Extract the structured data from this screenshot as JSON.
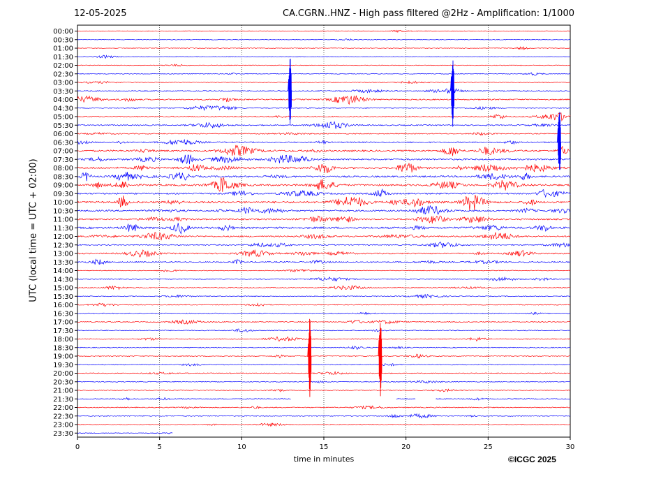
{
  "header": {
    "date": "12-05-2025",
    "title": "CA.CGRN..HNZ - High pass filtered @2Hz - Amplification: 1/1000"
  },
  "footer": {
    "copyright": "©ICGC 2025"
  },
  "colors": {
    "trace_red": "#ff0000",
    "trace_blue": "#0000ff",
    "grid": "#000000"
  },
  "chart_data": {
    "type": "line",
    "title": "CA.CGRN..HNZ - High pass filtered @2Hz - Amplification: 1/1000",
    "xlabel": "time in minutes",
    "ylabel": "UTC (local time = UTC + 02:00)",
    "xlim": [
      0,
      30
    ],
    "x_ticks": [
      "0",
      "5",
      "10",
      "15",
      "20",
      "25",
      "30"
    ],
    "x_gridlines": [
      5,
      10,
      15,
      20,
      25
    ],
    "grid": "vertical dotted",
    "row_labels": [
      "00:00",
      "00:30",
      "01:00",
      "01:30",
      "02:00",
      "02:30",
      "03:00",
      "03:30",
      "04:00",
      "04:30",
      "05:00",
      "05:30",
      "06:00",
      "06:30",
      "07:00",
      "07:30",
      "08:00",
      "08:30",
      "09:00",
      "09:30",
      "10:00",
      "10:30",
      "11:00",
      "11:30",
      "12:00",
      "12:30",
      "13:00",
      "13:30",
      "14:00",
      "14:30",
      "15:00",
      "15:30",
      "16:00",
      "16:30",
      "17:00",
      "17:30",
      "18:00",
      "18:30",
      "19:00",
      "19:30",
      "20:00",
      "20:30",
      "21:00",
      "21:30",
      "22:00",
      "22:30",
      "23:00",
      "23:30"
    ],
    "row_colors": "alternating red / blue starting with red at 00:00",
    "activity_level": [
      0.2,
      0.2,
      0.2,
      0.2,
      0.2,
      0.3,
      0.3,
      0.6,
      0.9,
      0.5,
      0.7,
      0.8,
      0.6,
      1.0,
      1.6,
      1.4,
      1.8,
      1.5,
      1.7,
      1.3,
      1.9,
      1.4,
      1.3,
      1.8,
      1.2,
      0.7,
      1.1,
      0.9,
      0.3,
      0.5,
      0.5,
      0.4,
      0.4,
      0.4,
      0.5,
      0.4,
      0.5,
      0.4,
      0.4,
      0.4,
      0.4,
      0.4,
      0.3,
      0.5,
      0.5,
      0.5,
      0.4,
      0.3
    ],
    "events": [
      {
        "time_utc": "03:30",
        "minute": 12.9,
        "label": "spike"
      },
      {
        "time_utc": "03:30",
        "minute": 22.8,
        "label": "spike"
      },
      {
        "time_utc": "06:30",
        "minute": 29.3,
        "label": "spike"
      },
      {
        "time_utc": "19:00",
        "minute": 14.1,
        "label": "spike"
      },
      {
        "time_utc": "19:00",
        "minute": 18.4,
        "label": "spike"
      }
    ],
    "data_gaps": [
      {
        "time_utc": "21:30",
        "from_minute": 13.0,
        "to_minute": 19.4
      },
      {
        "time_utc": "21:30",
        "from_minute": 20.6,
        "to_minute": 21.8
      },
      {
        "time_utc": "23:30",
        "from_minute": 5.8,
        "to_minute": 30
      }
    ]
  }
}
